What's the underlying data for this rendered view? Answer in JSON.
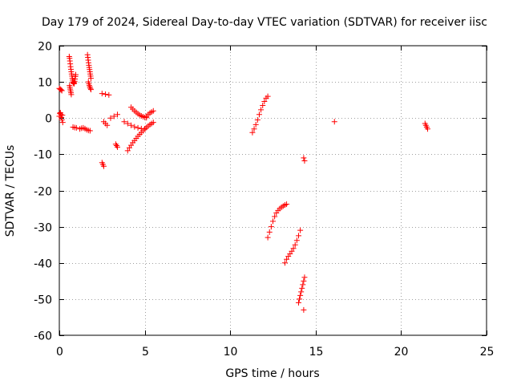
{
  "chart_data": {
    "type": "scatter",
    "title": "Day 179 of 2024, Sidereal Day-to-day VTEC variation (SDTVAR) for receiver iisc",
    "xlabel": "GPS time / hours",
    "ylabel": "SDTVAR / TECUs",
    "xlim": [
      0,
      25
    ],
    "ylim": [
      -60,
      20
    ],
    "xticks": [
      0,
      5,
      10,
      15,
      20,
      25
    ],
    "yticks": [
      -60,
      -50,
      -40,
      -30,
      -20,
      -10,
      0,
      10,
      20
    ],
    "grid": true,
    "marker": "plus",
    "color": "#ff0000",
    "series": [
      {
        "name": "s01",
        "x": [
          0.0,
          0.05,
          0.1,
          0.15
        ],
        "y": [
          8.2,
          8.0,
          7.8,
          7.6
        ]
      },
      {
        "name": "s02",
        "x": [
          0.0,
          0.03,
          0.06,
          0.09,
          0.12,
          0.15,
          0.18,
          0.2
        ],
        "y": [
          0.5,
          1.3,
          1.5,
          1.0,
          0.2,
          -0.5,
          0.8,
          -1.2
        ]
      },
      {
        "name": "s03",
        "x": [
          0.58,
          0.6,
          0.62,
          0.64,
          0.66,
          0.68,
          0.7,
          0.72,
          0.74,
          0.76,
          0.78,
          0.8,
          0.82,
          0.84,
          0.86,
          0.88,
          0.9,
          0.92,
          0.94,
          0.96
        ],
        "y": [
          17.0,
          16.5,
          15.8,
          15.0,
          14.2,
          13.5,
          12.8,
          12.2,
          11.6,
          11.0,
          10.5,
          10.0,
          9.8,
          9.6,
          9.5,
          9.8,
          10.2,
          10.8,
          11.5,
          12.0
        ]
      },
      {
        "name": "s04",
        "x": [
          0.6,
          0.62,
          0.64,
          0.66,
          0.68,
          0.7
        ],
        "y": [
          9.0,
          8.5,
          8.0,
          7.5,
          7.0,
          6.5
        ]
      },
      {
        "name": "s05",
        "x": [
          0.8,
          0.9,
          1.0
        ],
        "y": [
          -2.5,
          -2.6,
          -2.7
        ]
      },
      {
        "name": "s06",
        "x": [
          1.2,
          1.3,
          1.4,
          1.5,
          1.6,
          1.7,
          1.8
        ],
        "y": [
          -3.0,
          -2.8,
          -2.7,
          -2.9,
          -3.2,
          -3.4,
          -3.5
        ]
      },
      {
        "name": "s07",
        "x": [
          1.65,
          1.67,
          1.69,
          1.71,
          1.73,
          1.75,
          1.77,
          1.79,
          1.81,
          1.83,
          1.85
        ],
        "y": [
          17.5,
          16.8,
          16.0,
          15.3,
          14.6,
          14.0,
          13.4,
          12.8,
          12.2,
          11.6,
          11.0
        ]
      },
      {
        "name": "s08",
        "x": [
          1.7,
          1.73,
          1.76,
          1.79,
          1.82,
          1.85
        ],
        "y": [
          10.0,
          9.5,
          9.0,
          8.6,
          8.2,
          7.9
        ]
      },
      {
        "name": "s09",
        "x": [
          2.5,
          2.7,
          2.9
        ],
        "y": [
          6.8,
          6.6,
          6.4
        ]
      },
      {
        "name": "s10",
        "x": [
          2.5,
          2.55,
          2.6
        ],
        "y": [
          -12.3,
          -12.8,
          -13.3
        ]
      },
      {
        "name": "s11",
        "x": [
          2.6,
          2.7,
          2.8
        ],
        "y": [
          -1.0,
          -1.5,
          -2.0
        ]
      },
      {
        "name": "s12",
        "x": [
          3.0,
          3.2,
          3.4
        ],
        "y": [
          0.0,
          0.5,
          1.0
        ]
      },
      {
        "name": "s13",
        "x": [
          3.3,
          3.35,
          3.4
        ],
        "y": [
          -7.2,
          -7.6,
          -8.0
        ]
      },
      {
        "name": "s14",
        "x": [
          3.8,
          4.0,
          4.2,
          4.4,
          4.6,
          4.8,
          5.0
        ],
        "y": [
          -1.0,
          -1.5,
          -2.0,
          -2.4,
          -2.7,
          -2.9,
          -3.0
        ]
      },
      {
        "name": "s15",
        "x": [
          4.0,
          4.1,
          4.2,
          4.3,
          4.4,
          4.5,
          4.6,
          4.7,
          4.8,
          4.9,
          5.0
        ],
        "y": [
          -9.0,
          -8.2,
          -7.5,
          -6.8,
          -6.2,
          -5.6,
          -5.0,
          -4.5,
          -4.0,
          -3.5,
          -3.0
        ]
      },
      {
        "name": "s16",
        "x": [
          4.2,
          4.3,
          4.4,
          4.5,
          4.6,
          4.7,
          4.8,
          4.9,
          5.0,
          5.1
        ],
        "y": [
          3.0,
          2.5,
          2.0,
          1.6,
          1.2,
          0.9,
          0.6,
          0.4,
          0.2,
          0.1
        ]
      },
      {
        "name": "s17",
        "x": [
          5.0,
          5.1,
          5.2,
          5.3,
          5.4,
          5.5
        ],
        "y": [
          -3.0,
          -2.6,
          -2.2,
          -1.8,
          -1.5,
          -1.2
        ]
      },
      {
        "name": "s18",
        "x": [
          5.1,
          5.2,
          5.3,
          5.4,
          5.5
        ],
        "y": [
          0.5,
          1.0,
          1.4,
          1.7,
          2.0
        ]
      },
      {
        "name": "s19",
        "x": [
          11.3,
          11.4,
          11.5,
          11.6,
          11.7,
          11.8,
          11.9,
          12.0,
          12.1,
          12.2
        ],
        "y": [
          -4.0,
          -3.0,
          -1.8,
          -0.5,
          1.0,
          2.3,
          3.5,
          4.6,
          5.5,
          6.0
        ]
      },
      {
        "name": "s20",
        "x": [
          12.2,
          12.3,
          12.4,
          12.5,
          12.6,
          12.7,
          12.8,
          12.9,
          13.0,
          13.1,
          13.2,
          13.3
        ],
        "y": [
          -33.0,
          -31.5,
          -30.0,
          -28.5,
          -27.2,
          -26.2,
          -25.5,
          -25.0,
          -24.6,
          -24.3,
          -24.0,
          -23.8
        ]
      },
      {
        "name": "s21",
        "x": [
          13.2,
          13.3,
          13.4,
          13.5,
          13.6,
          13.7,
          13.8,
          13.9,
          14.0,
          14.1
        ],
        "y": [
          -40.0,
          -39.0,
          -38.2,
          -37.5,
          -36.8,
          -36.0,
          -35.0,
          -33.8,
          -32.5,
          -31.0
        ]
      },
      {
        "name": "s22",
        "x": [
          14.0,
          14.05,
          14.1,
          14.15,
          14.2,
          14.25,
          14.3,
          14.35
        ],
        "y": [
          -51.0,
          -50.0,
          -49.0,
          -48.0,
          -47.0,
          -46.0,
          -45.0,
          -44.0
        ]
      },
      {
        "name": "s23",
        "x": [
          14.3
        ],
        "y": [
          -53.0
        ]
      },
      {
        "name": "s24",
        "x": [
          14.3,
          14.35
        ],
        "y": [
          -11.0,
          -11.8
        ]
      },
      {
        "name": "s25",
        "x": [
          16.1
        ],
        "y": [
          -1.0
        ]
      },
      {
        "name": "s26",
        "x": [
          21.4,
          21.45,
          21.5,
          21.55
        ],
        "y": [
          -1.5,
          -2.0,
          -2.5,
          -3.0
        ]
      }
    ]
  }
}
